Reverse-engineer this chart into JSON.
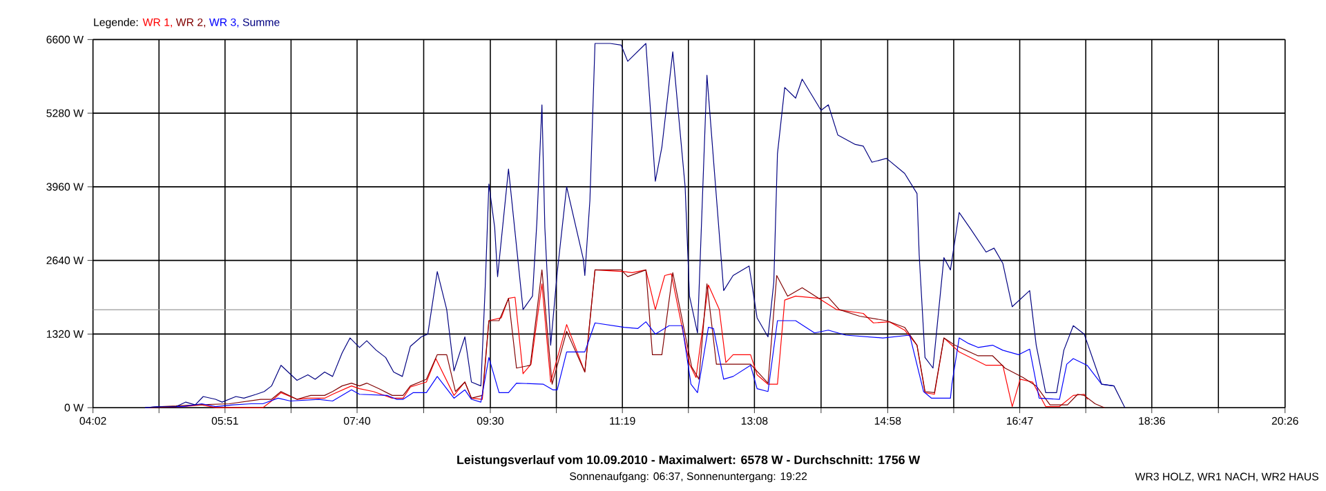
{
  "chart_data": {
    "type": "line",
    "title": "Leistungsverlauf vom 10.09.2010 - Maximalwert: 6578 W - Durchschnitt: 1756 W",
    "subtitle": "Sonnenaufgang: 06:37, Sonnenuntergang: 19:22",
    "legend_title": "Legende:",
    "annotations": [
      "WR3 HOLZ, WR1 NACH, WR2 HAUS"
    ],
    "xlim": [
      4.0333,
      20.4333
    ],
    "ylim": [
      0,
      6600
    ],
    "xticks": [
      {
        "value": 4.0333,
        "label": "04:02"
      },
      {
        "value": 4.9417,
        "label": null
      },
      {
        "value": 5.85,
        "label": "05:51"
      },
      {
        "value": 6.7583,
        "label": null
      },
      {
        "value": 7.6667,
        "label": "07:40"
      },
      {
        "value": 8.5833,
        "label": null
      },
      {
        "value": 9.5,
        "label": "09:30"
      },
      {
        "value": 10.4083,
        "label": null
      },
      {
        "value": 11.3167,
        "label": "11:19"
      },
      {
        "value": 12.225,
        "label": null
      },
      {
        "value": 13.1333,
        "label": "13:08"
      },
      {
        "value": 14.05,
        "label": null
      },
      {
        "value": 14.9667,
        "label": "14:58"
      },
      {
        "value": 15.875,
        "label": null
      },
      {
        "value": 16.7833,
        "label": "16:47"
      },
      {
        "value": 17.6917,
        "label": null
      },
      {
        "value": 18.6,
        "label": "18:36"
      },
      {
        "value": 19.5167,
        "label": null
      },
      {
        "value": 20.4333,
        "label": "20:26"
      }
    ],
    "yticks": [
      {
        "value": 0,
        "label": "0 W"
      },
      {
        "value": 1320,
        "label": "1320 W"
      },
      {
        "value": 2640,
        "label": "2640 W"
      },
      {
        "value": 3960,
        "label": "3960 W"
      },
      {
        "value": 5280,
        "label": "5280 W"
      },
      {
        "value": 6600,
        "label": "6600 W"
      }
    ],
    "grid": true,
    "legend": "top left",
    "marker": "none",
    "line_style": "solid",
    "ref_lines": [
      {
        "axis": "y",
        "value": 1756,
        "color": "#999999"
      }
    ],
    "series": [
      {
        "name": "WR 1,",
        "color": "#ff0000",
        "x": [
          4.75,
          5.27,
          5.53,
          5.72,
          6.37,
          6.49,
          6.62,
          6.84,
          6.99,
          7.22,
          7.33,
          7.59,
          7.7,
          7.89,
          8.15,
          8.3,
          8.4,
          8.62,
          8.75,
          9.0,
          9.15,
          9.24,
          9.39,
          9.48,
          9.65,
          9.75,
          9.84,
          9.95,
          10.06,
          10.21,
          10.33,
          10.55,
          10.8,
          10.94,
          11.34,
          11.45,
          11.64,
          11.77,
          11.9,
          11.99,
          12.24,
          12.33,
          12.5,
          12.65,
          12.74,
          12.84,
          13.08,
          13.17,
          13.32,
          13.45,
          13.55,
          13.7,
          14.02,
          14.26,
          14.63,
          14.77,
          14.99,
          15.2,
          15.37,
          15.48,
          15.61,
          15.74,
          15.95,
          16.32,
          16.55,
          16.68,
          16.79,
          16.96,
          17.14,
          17.33,
          17.52,
          17.67,
          17.72
        ],
        "values": [
          0,
          20,
          50,
          0,
          0,
          120,
          270,
          150,
          170,
          170,
          240,
          390,
          340,
          290,
          170,
          170,
          370,
          460,
          880,
          220,
          460,
          170,
          150,
          1560,
          1610,
          1960,
          1980,
          610,
          780,
          2220,
          460,
          1490,
          640,
          2470,
          2440,
          2420,
          2470,
          1760,
          2370,
          2400,
          780,
          540,
          2200,
          1760,
          810,
          950,
          950,
          590,
          420,
          420,
          1930,
          2000,
          1960,
          1760,
          1690,
          1520,
          1540,
          1390,
          1120,
          270,
          240,
          1250,
          1000,
          760,
          760,
          20,
          510,
          460,
          20,
          20,
          220,
          240,
          150
        ]
      },
      {
        "name": "WR 2,",
        "color": "#800000",
        "x": [
          4.75,
          4.97,
          5.46,
          5.91,
          6.34,
          6.49,
          6.62,
          6.84,
          7.03,
          7.22,
          7.33,
          7.46,
          7.59,
          7.7,
          7.8,
          7.97,
          8.15,
          8.3,
          8.4,
          8.62,
          8.77,
          8.9,
          9.02,
          9.15,
          9.24,
          9.39,
          9.48,
          9.62,
          9.75,
          9.86,
          10.05,
          10.21,
          10.35,
          10.55,
          10.8,
          10.94,
          11.3,
          11.39,
          11.64,
          11.73,
          11.86,
          12.01,
          12.27,
          12.37,
          12.48,
          12.61,
          13.08,
          13.27,
          13.32,
          13.44,
          13.59,
          13.79,
          14.02,
          14.15,
          14.3,
          14.58,
          14.95,
          15.2,
          15.37,
          15.48,
          15.61,
          15.74,
          15.89,
          16.21,
          16.41,
          16.58,
          16.83,
          17.01,
          17.2,
          17.44,
          17.58,
          17.67,
          17.82,
          17.95
        ],
        "values": [
          0,
          20,
          50,
          70,
          150,
          150,
          290,
          150,
          220,
          220,
          290,
          390,
          440,
          390,
          440,
          340,
          220,
          220,
          390,
          510,
          950,
          950,
          290,
          460,
          170,
          220,
          1560,
          1560,
          1960,
          710,
          760,
          2470,
          420,
          1370,
          640,
          2470,
          2470,
          2350,
          2470,
          950,
          950,
          2420,
          730,
          510,
          2220,
          780,
          780,
          510,
          440,
          2370,
          2000,
          2150,
          1960,
          1980,
          1760,
          1640,
          1560,
          1440,
          1120,
          290,
          270,
          1250,
          1120,
          930,
          930,
          710,
          540,
          390,
          50,
          50,
          240,
          220,
          70,
          0
        ]
      },
      {
        "name": "WR 3,",
        "color": "#0000ff",
        "x": [
          4.75,
          4.97,
          5.27,
          5.53,
          5.72,
          5.96,
          6.21,
          6.37,
          6.58,
          6.75,
          7.14,
          7.33,
          7.59,
          7.7,
          8.08,
          8.21,
          8.3,
          8.44,
          8.62,
          8.77,
          9.0,
          9.15,
          9.24,
          9.37,
          9.48,
          9.62,
          9.75,
          9.86,
          10.23,
          10.36,
          10.42,
          10.55,
          10.8,
          10.94,
          11.34,
          11.53,
          11.64,
          11.77,
          11.96,
          12.14,
          12.26,
          12.35,
          12.5,
          12.57,
          12.71,
          12.84,
          13.08,
          13.17,
          13.32,
          13.45,
          13.7,
          13.96,
          14.15,
          14.39,
          14.9,
          15.27,
          15.46,
          15.57,
          15.83,
          15.85,
          15.95,
          16.08,
          16.21,
          16.41,
          16.55,
          16.77,
          16.92,
          17.05,
          17.33,
          17.43,
          17.52,
          17.71,
          17.91,
          18.08
        ],
        "values": [
          0,
          20,
          20,
          70,
          20,
          50,
          70,
          70,
          170,
          120,
          150,
          120,
          320,
          240,
          220,
          150,
          150,
          270,
          270,
          560,
          170,
          320,
          150,
          100,
          900,
          270,
          270,
          440,
          420,
          320,
          320,
          1000,
          1000,
          1520,
          1440,
          1420,
          1540,
          1320,
          1470,
          1470,
          420,
          270,
          1440,
          1420,
          510,
          560,
          760,
          340,
          290,
          1560,
          1560,
          1340,
          1390,
          1300,
          1250,
          1300,
          290,
          170,
          170,
          420,
          1250,
          1150,
          1080,
          1120,
          1030,
          950,
          1050,
          170,
          150,
          780,
          880,
          760,
          420,
          390
        ]
      },
      {
        "name": "Summe",
        "color": "#000080",
        "x": [
          4.75,
          4.97,
          5.18,
          5.31,
          5.44,
          5.55,
          5.72,
          5.81,
          6.0,
          6.11,
          6.28,
          6.39,
          6.49,
          6.62,
          6.84,
          6.99,
          7.09,
          7.22,
          7.33,
          7.46,
          7.57,
          7.7,
          7.8,
          7.93,
          8.06,
          8.17,
          8.29,
          8.4,
          8.55,
          8.64,
          8.77,
          8.9,
          9.0,
          9.15,
          9.24,
          9.37,
          9.43,
          9.48,
          9.56,
          9.6,
          9.75,
          9.95,
          10.08,
          10.14,
          10.21,
          10.25,
          10.33,
          10.42,
          10.55,
          10.78,
          10.8,
          10.87,
          10.94,
          11.15,
          11.3,
          11.39,
          11.64,
          11.77,
          11.86,
          12.01,
          12.18,
          12.24,
          12.35,
          12.48,
          12.71,
          12.84,
          13.06,
          13.17,
          13.32,
          13.4,
          13.45,
          13.55,
          13.7,
          13.79,
          14.05,
          14.15,
          14.28,
          14.52,
          14.63,
          14.75,
          14.95,
          15.2,
          15.37,
          15.4,
          15.48,
          15.59,
          15.74,
          15.83,
          15.95,
          16.11,
          16.32,
          16.43,
          16.55,
          16.68,
          16.92,
          17.01,
          17.14,
          17.29,
          17.39,
          17.52,
          17.67,
          17.91,
          18.08,
          18.23
        ],
        "values": [
          0,
          20,
          20,
          100,
          50,
          200,
          150,
          100,
          200,
          170,
          240,
          290,
          390,
          760,
          490,
          590,
          510,
          640,
          560,
          980,
          1250,
          1080,
          1200,
          1030,
          900,
          640,
          560,
          1100,
          1270,
          1320,
          2440,
          1760,
          660,
          1270,
          460,
          390,
          2180,
          4010,
          3230,
          2350,
          4280,
          1760,
          2000,
          3320,
          5430,
          3230,
          1120,
          2420,
          3960,
          2660,
          2370,
          3720,
          6530,
          6530,
          6500,
          6210,
          6530,
          4060,
          4670,
          6380,
          3960,
          2000,
          1340,
          5960,
          2100,
          2370,
          2540,
          1610,
          1270,
          2250,
          4550,
          5740,
          5550,
          5890,
          5330,
          5430,
          4890,
          4720,
          4690,
          4400,
          4470,
          4200,
          3840,
          2740,
          900,
          710,
          2690,
          2470,
          3500,
          3200,
          2790,
          2860,
          2590,
          1810,
          2100,
          1120,
          270,
          270,
          1030,
          1470,
          1320,
          420,
          390,
          0
        ]
      }
    ]
  }
}
